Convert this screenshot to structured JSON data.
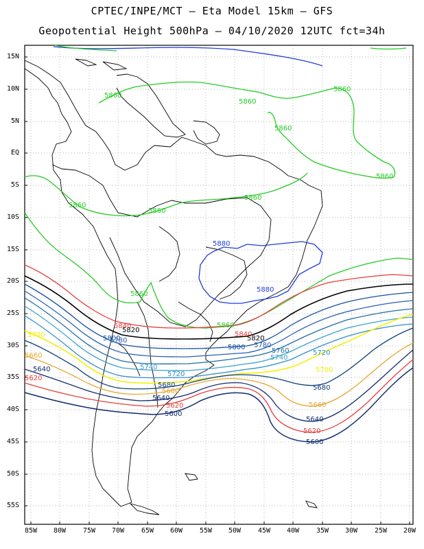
{
  "title_line1": "CPTEC/INPE/MCT –  Eta Model 15km – GFS",
  "title_line2": "Geopotential Height 500hPa – 04/10/2020 12UTC fct=34h",
  "lat_labels": [
    "15N",
    "10N",
    "5N",
    "EQ",
    "5S",
    "10S",
    "15S",
    "20S",
    "25S",
    "30S",
    "35S",
    "40S",
    "45S",
    "50S",
    "55S"
  ],
  "lon_labels": [
    "85W",
    "80W",
    "75W",
    "70W",
    "65W",
    "60W",
    "55W",
    "50W",
    "45W",
    "40W",
    "35W",
    "30W",
    "25W",
    "20W"
  ],
  "extent": {
    "lon": [
      -86,
      -20
    ],
    "lat": [
      -58,
      16
    ]
  },
  "contour_colors": {
    "5600": "#102a6e",
    "5620": "#e83c3c",
    "5640": "#102a6e",
    "5660": "#e6a832",
    "5680": "#0c3c78",
    "5700": "#f0f000",
    "5720": "#2e8cc8",
    "5740": "#3ca0c8",
    "5760": "#1e6ea0",
    "5780": "#2860b4",
    "5800": "#1450a0",
    "5820": "#000000",
    "5840": "#e83c3c",
    "5860": "#22cc22",
    "5880": "#1e3cdc"
  },
  "contour_labels": [
    {
      "text": "5860",
      "color": "#22cc22"
    },
    {
      "text": "5860",
      "color": "#22cc22"
    },
    {
      "text": "5860",
      "color": "#22cc22"
    },
    {
      "text": "5860",
      "color": "#22cc22"
    },
    {
      "text": "5860",
      "color": "#22cc22"
    },
    {
      "text": "5860",
      "color": "#22cc22"
    },
    {
      "text": "5860",
      "color": "#22cc22"
    },
    {
      "text": "5860",
      "color": "#22cc22"
    },
    {
      "text": "5860",
      "color": "#22cc22"
    },
    {
      "text": "5860",
      "color": "#22cc22"
    },
    {
      "text": "5880",
      "color": "#1e3cdc"
    },
    {
      "text": "5880",
      "color": "#1e3cdc"
    },
    {
      "text": "5840",
      "color": "#e83c3c"
    },
    {
      "text": "5840",
      "color": "#e83c3c"
    },
    {
      "text": "5820",
      "color": "#000000"
    },
    {
      "text": "5820",
      "color": "#000000"
    },
    {
      "text": "5800",
      "color": "#1450a0"
    },
    {
      "text": "5800",
      "color": "#1450a0"
    },
    {
      "text": "5780",
      "color": "#2860b4"
    },
    {
      "text": "5780",
      "color": "#2860b4"
    },
    {
      "text": "5760",
      "color": "#1e6ea0"
    },
    {
      "text": "5740",
      "color": "#3ca0c8"
    },
    {
      "text": "5740",
      "color": "#3ca0c8"
    },
    {
      "text": "5720",
      "color": "#2e8cc8"
    },
    {
      "text": "5720",
      "color": "#2e8cc8"
    },
    {
      "text": "5700",
      "color": "#f0f000"
    },
    {
      "text": "5700",
      "color": "#f0f000"
    },
    {
      "text": "5680",
      "color": "#0c3c78"
    },
    {
      "text": "5680",
      "color": "#0c3c78"
    },
    {
      "text": "5660",
      "color": "#e6a832"
    },
    {
      "text": "5660",
      "color": "#e6a832"
    },
    {
      "text": "5660",
      "color": "#e6a832"
    },
    {
      "text": "5640",
      "color": "#102a6e"
    },
    {
      "text": "5640",
      "color": "#102a6e"
    },
    {
      "text": "5640",
      "color": "#102a6e"
    },
    {
      "text": "5620",
      "color": "#e83c3c"
    },
    {
      "text": "5620",
      "color": "#e83c3c"
    },
    {
      "text": "5620",
      "color": "#e83c3c"
    },
    {
      "text": "5600",
      "color": "#102a6e"
    },
    {
      "text": "5600",
      "color": "#102a6e"
    }
  ]
}
